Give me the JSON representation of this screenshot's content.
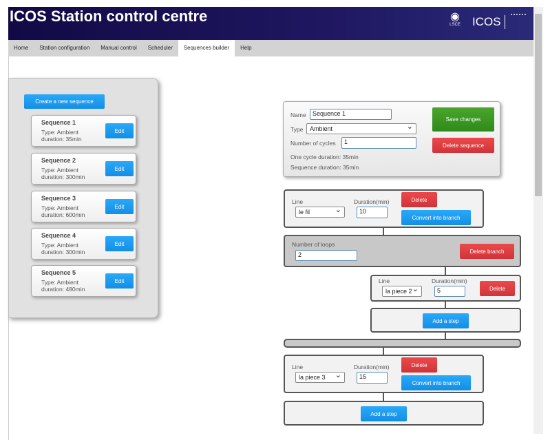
{
  "header": {
    "title": "ICOS Station control centre",
    "logo_lsce": "LSCE",
    "logo_icos": "ICOS"
  },
  "nav": {
    "tabs": [
      "Home",
      "Station configuration",
      "Manual control",
      "Scheduler",
      "Sequences builder",
      "Help"
    ],
    "active": "Sequences builder"
  },
  "sidebar": {
    "create_label": "Create a new sequence",
    "sequences": [
      {
        "name": "Sequence 1",
        "type": "Type: Ambient",
        "duration": "duration: 35min",
        "edit": "Edit"
      },
      {
        "name": "Sequence 2",
        "type": "Type: Ambient",
        "duration": "duration: 300min",
        "edit": "Edit"
      },
      {
        "name": "Sequence 3",
        "type": "Type: Ambient",
        "duration": "duration: 600min",
        "edit": "Edit"
      },
      {
        "name": "Sequence 4",
        "type": "Type: Ambient",
        "duration": "duration: 300min",
        "edit": "Edit"
      },
      {
        "name": "Sequence 5",
        "type": "Type: Ambient",
        "duration": "duration: 480min",
        "edit": "Edit"
      }
    ]
  },
  "editor": {
    "name_label": "Name",
    "name_value": "Sequence 1",
    "type_label": "Type",
    "type_value": "Ambient",
    "cycles_label": "Number of cycles",
    "cycles_value": "1",
    "cycle_duration": "One cycle duration: 35min",
    "sequence_duration": "Sequence duration: 35min",
    "save": "Save changes",
    "delete": "Delete sequence"
  },
  "steps": {
    "line_label": "Line",
    "duration_label": "Duration(min)",
    "delete": "Delete",
    "convert": "Convert into branch",
    "add": "Add a step",
    "step1": {
      "line": "le fil",
      "duration": "10"
    },
    "branch": {
      "loops_label": "Number of loops",
      "loops": "2",
      "delete": "Delete branch",
      "step": {
        "line": "la piece 2",
        "duration": "5"
      }
    },
    "step3": {
      "line": "la piece 3",
      "duration": "15"
    }
  },
  "colors": {
    "header": "#120a45",
    "blue": "#1a9af0",
    "red": "#d9393f",
    "green": "#3d9a24"
  }
}
